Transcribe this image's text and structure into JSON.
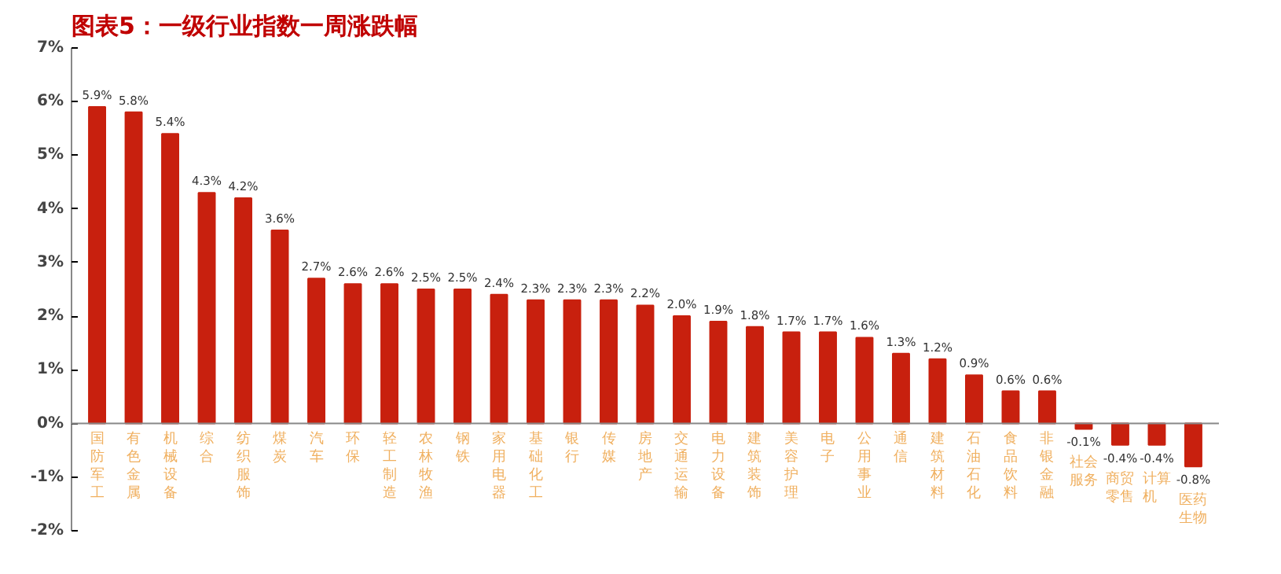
{
  "chart_data": {
    "type": "bar",
    "title": "图表5：一级行业指数一周涨跌幅",
    "categories": [
      "国防军工",
      "有色金属",
      "机械设备",
      "综合",
      "纺织服饰",
      "煤炭",
      "汽车",
      "环保",
      "轻工制造",
      "农林牧渔",
      "钢铁",
      "家用电器",
      "基础化工",
      "银行",
      "传媒",
      "房地产",
      "交通运输",
      "电力设备",
      "建筑装饰",
      "美容护理",
      "电子",
      "公用事业",
      "通信",
      "建筑材料",
      "石油石化",
      "食品饮料",
      "非银金融",
      "社会服务",
      "商贸零售",
      "计算机",
      "医药生物"
    ],
    "values": [
      5.9,
      5.8,
      5.4,
      4.3,
      4.2,
      3.6,
      2.7,
      2.6,
      2.6,
      2.5,
      2.5,
      2.4,
      2.3,
      2.3,
      2.3,
      2.2,
      2.0,
      1.9,
      1.8,
      1.7,
      1.7,
      1.6,
      1.3,
      1.2,
      0.9,
      0.6,
      0.6,
      -0.1,
      -0.4,
      -0.4,
      -0.8
    ],
    "value_labels": [
      "5.9%",
      "5.8%",
      "5.4%",
      "4.3%",
      "4.2%",
      "3.6%",
      "2.7%",
      "2.6%",
      "2.6%",
      "2.5%",
      "2.5%",
      "2.4%",
      "2.3%",
      "2.3%",
      "2.3%",
      "2.2%",
      "2.0%",
      "1.9%",
      "1.8%",
      "1.7%",
      "1.7%",
      "1.6%",
      "1.3%",
      "1.2%",
      "0.9%",
      "0.6%",
      "0.6%",
      "-0.1%",
      "-0.4%",
      "-0.4%",
      "-0.8%"
    ],
    "color": "#c8200e",
    "ylim": [
      -2,
      7
    ],
    "yticks": [
      {
        "value": -2,
        "label": "-2%"
      },
      {
        "value": -1,
        "label": "-1%"
      },
      {
        "value": 0,
        "label": "0%"
      },
      {
        "value": 1,
        "label": "1%"
      },
      {
        "value": 2,
        "label": "2%"
      },
      {
        "value": 3,
        "label": "3%"
      },
      {
        "value": 4,
        "label": "4%"
      },
      {
        "value": 5,
        "label": "5%"
      },
      {
        "value": 6,
        "label": "6%"
      },
      {
        "value": 7,
        "label": "7%"
      }
    ],
    "grid": false
  }
}
